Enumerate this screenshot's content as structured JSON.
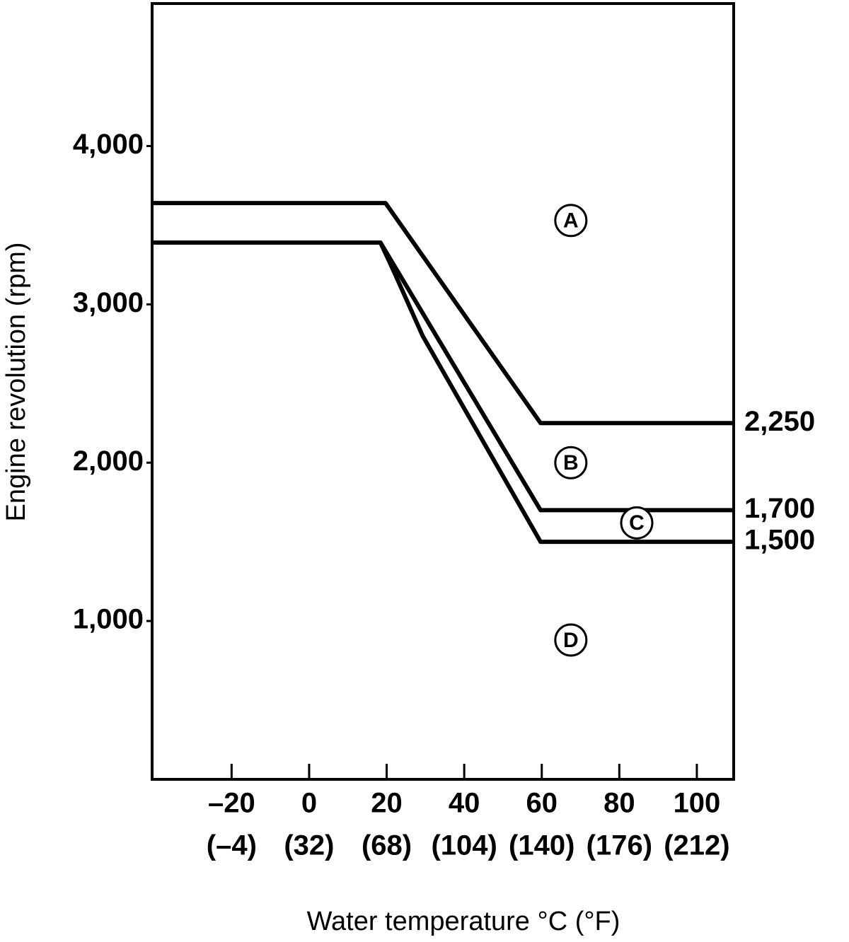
{
  "chart_data": {
    "type": "line",
    "xlabel": "Water temperature °C (°F)",
    "ylabel": "Engine revolution (rpm)",
    "xlim": [
      -40.5,
      109.5
    ],
    "ylim": [
      0,
      4900
    ],
    "xticks": [
      {
        "value": -20,
        "label": "–20"
      },
      0,
      20,
      40,
      60,
      80,
      100
    ],
    "xtick_labels_f": [
      "(–4)",
      "(32)",
      "(68)",
      "(104)",
      "(140)",
      "(176)",
      "(212)"
    ],
    "yticks": [
      {
        "value": 1000,
        "label": "1,000"
      },
      {
        "value": 2000,
        "label": "2,000"
      },
      {
        "value": 3000,
        "label": "3,000"
      },
      {
        "value": 4000,
        "label": "4,000"
      }
    ],
    "y2lim": [
      0,
      4900
    ],
    "y2ticks": [
      {
        "value": 2250,
        "label": "2,250"
      },
      {
        "value": 1700,
        "label": "1,700"
      },
      {
        "value": 1500,
        "label": "1,500"
      }
    ],
    "series": [
      {
        "color": "#000000",
        "x": [
          -40.5,
          19.7,
          59.7,
          109.5
        ],
        "values": [
          3640,
          3640,
          2250,
          2250
        ]
      },
      {
        "color": "#000000",
        "x": [
          -40.5,
          18.4,
          59.7,
          109.5
        ],
        "values": [
          3390,
          3390,
          1700,
          1700
        ]
      },
      {
        "color": "#000000",
        "x": [
          -40.5,
          18.4,
          22,
          29.3,
          59.7,
          109.5
        ],
        "values": [
          3390,
          3390,
          3200,
          2800,
          1500,
          1500
        ]
      }
    ],
    "annotations": [
      {
        "label": "A",
        "x": 67.5,
        "y": 3530
      },
      {
        "label": "B",
        "x": 67.5,
        "y": 2000
      },
      {
        "label": "C",
        "x": 84.5,
        "y": 1620
      },
      {
        "label": "D",
        "x": 67.5,
        "y": 880
      }
    ]
  }
}
